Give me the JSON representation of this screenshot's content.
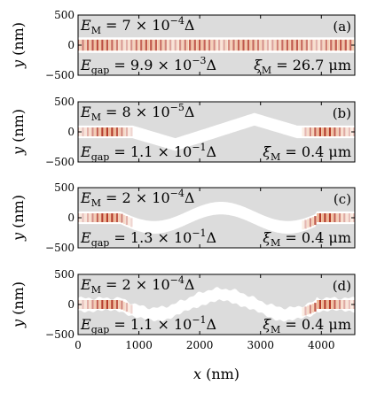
{
  "chart_data": [
    {
      "panel": "(a)",
      "type": "heatmap",
      "xlim": [
        0,
        4550
      ],
      "ylim": [
        -500,
        500
      ],
      "xticks": [
        0,
        1000,
        2000,
        3000,
        4000
      ],
      "yticks": [
        500,
        0,
        -500
      ],
      "ylabel": "y (nm)",
      "geometry": "straight",
      "EM": "E_M = 7 × 10^{−4} Δ",
      "Egap": "E_gap = 9.9 × 10^{−3} Δ",
      "xiM": "ξ_M = 26.7 μm",
      "annotations": {
        "em": {
          "text": "E",
          "sub": "M",
          "tail": " = 7 × 10",
          "sup": "−4",
          "end": "Δ"
        },
        "egap": {
          "text": "E",
          "sub": "gap",
          "tail": " = 9.9 × 10",
          "sup": "−3",
          "end": "Δ"
        },
        "xi": {
          "text": "ξ",
          "sub": "M",
          "tail": " = 26.7 μm"
        }
      }
    },
    {
      "panel": "(b)",
      "type": "heatmap",
      "xlim": [
        0,
        4550
      ],
      "ylim": [
        -500,
        500
      ],
      "xticks": [
        0,
        1000,
        2000,
        3000,
        4000
      ],
      "yticks": [
        500,
        0,
        -500
      ],
      "ylabel": "y (nm)",
      "geometry": "zigzag",
      "EM": "E_M = 8 × 10^{−5} Δ",
      "Egap": "E_gap = 1.1 × 10^{−1} Δ",
      "xiM": "ξ_M = 0.4 μm",
      "annotations": {
        "em": {
          "text": "E",
          "sub": "M",
          "tail": " = 8 × 10",
          "sup": "−5",
          "end": "Δ"
        },
        "egap": {
          "text": "E",
          "sub": "gap",
          "tail": " = 1.1 × 10",
          "sup": "−1",
          "end": "Δ"
        },
        "xi": {
          "text": "ξ",
          "sub": "M",
          "tail": " = 0.4 μm"
        }
      }
    },
    {
      "panel": "(c)",
      "type": "heatmap",
      "xlim": [
        0,
        4550
      ],
      "ylim": [
        -500,
        500
      ],
      "xticks": [
        0,
        1000,
        2000,
        3000,
        4000
      ],
      "yticks": [
        500,
        0,
        -500
      ],
      "ylabel": "y (nm)",
      "geometry": "sinusoidal",
      "EM": "E_M = 2 × 10^{−4} Δ",
      "Egap": "E_gap = 1.3 × 10^{−1} Δ",
      "xiM": "ξ_M = 0.4 μm",
      "annotations": {
        "em": {
          "text": "E",
          "sub": "M",
          "tail": " = 2 × 10",
          "sup": "−4",
          "end": "Δ"
        },
        "egap": {
          "text": "E",
          "sub": "gap",
          "tail": " = 1.3 × 10",
          "sup": "−1",
          "end": "Δ"
        },
        "xi": {
          "text": "ξ",
          "sub": "M",
          "tail": " = 0.4 μm"
        }
      }
    },
    {
      "panel": "(d)",
      "type": "heatmap",
      "xlim": [
        0,
        4550
      ],
      "ylim": [
        -500,
        500
      ],
      "xticks": [
        0,
        1000,
        2000,
        3000,
        4000
      ],
      "yticks": [
        500,
        0,
        -500
      ],
      "ylabel": "y (nm)",
      "xlabel": "x (nm)",
      "geometry": "sinusoidal-rough",
      "EM": "E_M = 2 × 10^{−4} Δ",
      "Egap": "E_gap = 1.1 × 10^{−1} Δ",
      "xiM": "ξ_M = 0.4 μm",
      "annotations": {
        "em": {
          "text": "E",
          "sub": "M",
          "tail": " = 2 × 10",
          "sup": "−4",
          "end": "Δ"
        },
        "egap": {
          "text": "E",
          "sub": "gap",
          "tail": " = 1.1 × 10",
          "sup": "−1",
          "end": "Δ"
        },
        "xi": {
          "text": "ξ",
          "sub": "M",
          "tail": " = 0.4 μm"
        }
      }
    }
  ],
  "colors": {
    "background": "#dcdcdc",
    "channel": "#ffffff",
    "wave_dark": "#b2301c",
    "wave_light": "#f0b48c",
    "frame": "#000000"
  },
  "axis_text": {
    "ylabel_y": "y",
    "ylabel_unit": " (nm)",
    "xlabel_x": "x",
    "xlabel_unit": " (nm)"
  }
}
